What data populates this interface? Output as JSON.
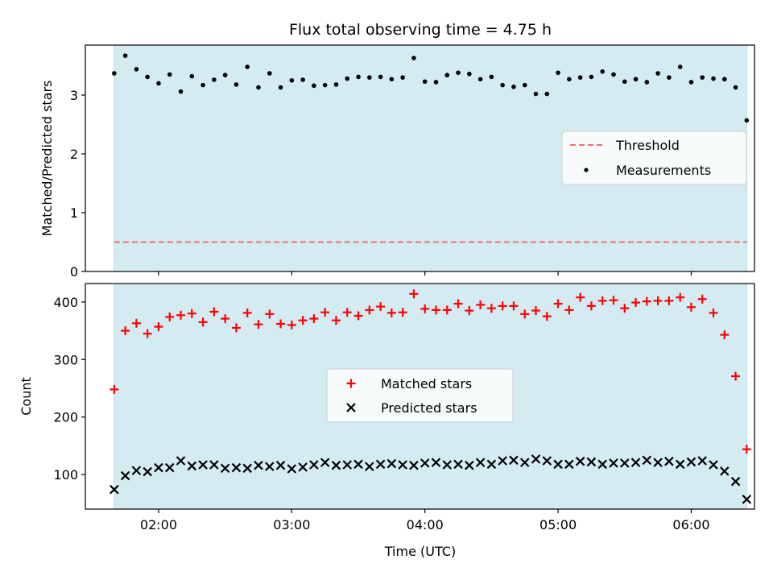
{
  "chart_data": [
    {
      "type": "scatter",
      "title": "Flux total observing time = 4.75 h",
      "ylabel": "Matched/Predicted stars",
      "xlabel": "",
      "ylim": [
        0,
        3.85
      ],
      "yticks": [
        0,
        1,
        2,
        3
      ],
      "xticks": [
        "02:00",
        "03:00",
        "04:00",
        "05:00",
        "06:00"
      ],
      "xlim_hours": [
        1.45,
        6.475
      ],
      "observing_window_hours": [
        1.667,
        6.417
      ],
      "observing_window_color": "#d4ebf1",
      "legend_position": "center-right",
      "threshold": {
        "name": "Threshold",
        "value": 0.5,
        "color": "#f07070",
        "style": "dashed"
      },
      "series": [
        {
          "name": "Measurements",
          "marker": "dot",
          "color": "#000000",
          "points": [
            [
              "01:40",
              3.37
            ],
            [
              "01:45",
              3.67
            ],
            [
              "01:50",
              3.44
            ],
            [
              "01:55",
              3.31
            ],
            [
              "02:00",
              3.2
            ],
            [
              "02:05",
              3.35
            ],
            [
              "02:10",
              3.06
            ],
            [
              "02:15",
              3.32
            ],
            [
              "02:20",
              3.17
            ],
            [
              "02:25",
              3.26
            ],
            [
              "02:30",
              3.34
            ],
            [
              "02:35",
              3.18
            ],
            [
              "02:40",
              3.48
            ],
            [
              "02:45",
              3.13
            ],
            [
              "02:50",
              3.37
            ],
            [
              "02:55",
              3.13
            ],
            [
              "03:00",
              3.25
            ],
            [
              "03:05",
              3.26
            ],
            [
              "03:10",
              3.16
            ],
            [
              "03:15",
              3.17
            ],
            [
              "03:20",
              3.18
            ],
            [
              "03:25",
              3.28
            ],
            [
              "03:30",
              3.31
            ],
            [
              "03:35",
              3.3
            ],
            [
              "03:40",
              3.31
            ],
            [
              "03:45",
              3.27
            ],
            [
              "03:50",
              3.3
            ],
            [
              "03:55",
              3.63
            ],
            [
              "04:00",
              3.23
            ],
            [
              "04:05",
              3.22
            ],
            [
              "04:10",
              3.34
            ],
            [
              "04:15",
              3.38
            ],
            [
              "04:20",
              3.36
            ],
            [
              "04:25",
              3.27
            ],
            [
              "04:30",
              3.31
            ],
            [
              "04:35",
              3.17
            ],
            [
              "04:40",
              3.14
            ],
            [
              "04:45",
              3.17
            ],
            [
              "04:50",
              3.02
            ],
            [
              "04:55",
              3.02
            ],
            [
              "05:00",
              3.38
            ],
            [
              "05:05",
              3.27
            ],
            [
              "05:10",
              3.3
            ],
            [
              "05:15",
              3.31
            ],
            [
              "05:20",
              3.4
            ],
            [
              "05:25",
              3.35
            ],
            [
              "05:30",
              3.23
            ],
            [
              "05:35",
              3.27
            ],
            [
              "05:40",
              3.22
            ],
            [
              "05:45",
              3.37
            ],
            [
              "05:50",
              3.3
            ],
            [
              "05:55",
              3.48
            ],
            [
              "06:00",
              3.22
            ],
            [
              "06:05",
              3.3
            ],
            [
              "06:10",
              3.28
            ],
            [
              "06:15",
              3.27
            ],
            [
              "06:20",
              3.13
            ],
            [
              "06:25",
              2.57
            ]
          ]
        }
      ]
    },
    {
      "type": "scatter",
      "title": "",
      "xlabel": "Time (UTC)",
      "ylabel": "Count",
      "ylim": [
        40,
        432
      ],
      "yticks": [
        100,
        200,
        300,
        400
      ],
      "xticks": [
        "02:00",
        "03:00",
        "04:00",
        "05:00",
        "06:00"
      ],
      "xlim_hours": [
        1.45,
        6.475
      ],
      "observing_window_hours": [
        1.667,
        6.417
      ],
      "observing_window_color": "#d4ebf1",
      "legend_position": "center",
      "series": [
        {
          "name": "Matched stars",
          "marker": "plus",
          "color": "#ff0000",
          "points": [
            [
              "01:40",
              248
            ],
            [
              "01:45",
              350
            ],
            [
              "01:50",
              363
            ],
            [
              "01:55",
              345
            ],
            [
              "02:00",
              357
            ],
            [
              "02:05",
              374
            ],
            [
              "02:10",
              377
            ],
            [
              "02:15",
              380
            ],
            [
              "02:20",
              365
            ],
            [
              "02:25",
              383
            ],
            [
              "02:30",
              371
            ],
            [
              "02:35",
              355
            ],
            [
              "02:40",
              381
            ],
            [
              "02:45",
              361
            ],
            [
              "02:50",
              379
            ],
            [
              "02:55",
              362
            ],
            [
              "03:00",
              360
            ],
            [
              "03:05",
              368
            ],
            [
              "03:10",
              371
            ],
            [
              "03:15",
              382
            ],
            [
              "03:20",
              368
            ],
            [
              "03:25",
              382
            ],
            [
              "03:30",
              376
            ],
            [
              "03:35",
              386
            ],
            [
              "03:40",
              392
            ],
            [
              "03:45",
              381
            ],
            [
              "03:50",
              382
            ],
            [
              "03:55",
              414
            ],
            [
              "04:00",
              388
            ],
            [
              "04:05",
              386
            ],
            [
              "04:10",
              386
            ],
            [
              "04:15",
              397
            ],
            [
              "04:20",
              385
            ],
            [
              "04:25",
              395
            ],
            [
              "04:30",
              389
            ],
            [
              "04:35",
              393
            ],
            [
              "04:40",
              393
            ],
            [
              "04:45",
              379
            ],
            [
              "04:50",
              385
            ],
            [
              "04:55",
              375
            ],
            [
              "05:00",
              397
            ],
            [
              "05:05",
              386
            ],
            [
              "05:10",
              408
            ],
            [
              "05:15",
              393
            ],
            [
              "05:20",
              402
            ],
            [
              "05:25",
              403
            ],
            [
              "05:30",
              389
            ],
            [
              "05:35",
              399
            ],
            [
              "05:40",
              401
            ],
            [
              "05:45",
              402
            ],
            [
              "05:50",
              402
            ],
            [
              "05:55",
              408
            ],
            [
              "06:00",
              391
            ],
            [
              "06:05",
              405
            ],
            [
              "06:10",
              381
            ],
            [
              "06:15",
              343
            ],
            [
              "06:20",
              271
            ],
            [
              "06:25",
              144
            ]
          ]
        },
        {
          "name": "Predicted stars",
          "marker": "x",
          "color": "#000000",
          "points": [
            [
              "01:40",
              74
            ],
            [
              "01:45",
              98
            ],
            [
              "01:50",
              107
            ],
            [
              "01:55",
              105
            ],
            [
              "02:00",
              112
            ],
            [
              "02:05",
              112
            ],
            [
              "02:10",
              124
            ],
            [
              "02:15",
              115
            ],
            [
              "02:20",
              117
            ],
            [
              "02:25",
              117
            ],
            [
              "02:30",
              111
            ],
            [
              "02:35",
              112
            ],
            [
              "02:40",
              111
            ],
            [
              "02:45",
              116
            ],
            [
              "02:50",
              114
            ],
            [
              "02:55",
              116
            ],
            [
              "03:00",
              110
            ],
            [
              "03:05",
              113
            ],
            [
              "03:10",
              117
            ],
            [
              "03:15",
              121
            ],
            [
              "03:20",
              116
            ],
            [
              "03:25",
              117
            ],
            [
              "03:30",
              118
            ],
            [
              "03:35",
              114
            ],
            [
              "03:40",
              118
            ],
            [
              "03:45",
              119
            ],
            [
              "03:50",
              117
            ],
            [
              "03:55",
              116
            ],
            [
              "04:00",
              120
            ],
            [
              "04:05",
              121
            ],
            [
              "04:10",
              117
            ],
            [
              "04:15",
              118
            ],
            [
              "04:20",
              116
            ],
            [
              "04:25",
              121
            ],
            [
              "04:30",
              118
            ],
            [
              "04:35",
              124
            ],
            [
              "04:40",
              125
            ],
            [
              "04:45",
              121
            ],
            [
              "04:50",
              127
            ],
            [
              "04:55",
              124
            ],
            [
              "05:00",
              118
            ],
            [
              "05:05",
              118
            ],
            [
              "05:10",
              123
            ],
            [
              "05:15",
              122
            ],
            [
              "05:20",
              118
            ],
            [
              "05:25",
              120
            ],
            [
              "05:30",
              120
            ],
            [
              "05:35",
              121
            ],
            [
              "05:40",
              125
            ],
            [
              "05:45",
              121
            ],
            [
              "05:50",
              123
            ],
            [
              "05:55",
              118
            ],
            [
              "06:00",
              122
            ],
            [
              "06:05",
              124
            ],
            [
              "06:10",
              117
            ],
            [
              "06:15",
              106
            ],
            [
              "06:20",
              88
            ],
            [
              "06:25",
              57
            ]
          ]
        }
      ]
    }
  ]
}
